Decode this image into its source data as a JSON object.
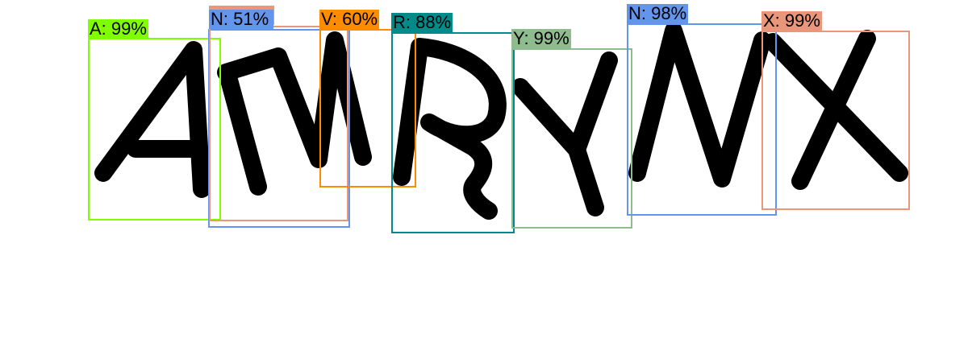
{
  "detections": [
    {
      "label": "A: 99%",
      "color": "#7fff00"
    },
    {
      "label": "N: 51%",
      "color": "#6495ed"
    },
    {
      "label": "",
      "color": "#e9967a"
    },
    {
      "label": "V: 60%",
      "color": "#ff8c00"
    },
    {
      "label": "R: 88%",
      "color": "#008b8b"
    },
    {
      "label": "Y: 99%",
      "color": "#8fbc8f"
    },
    {
      "label": "N: 98%",
      "color": "#6495ed"
    },
    {
      "label": "X: 99%",
      "color": "#e9967a"
    }
  ]
}
